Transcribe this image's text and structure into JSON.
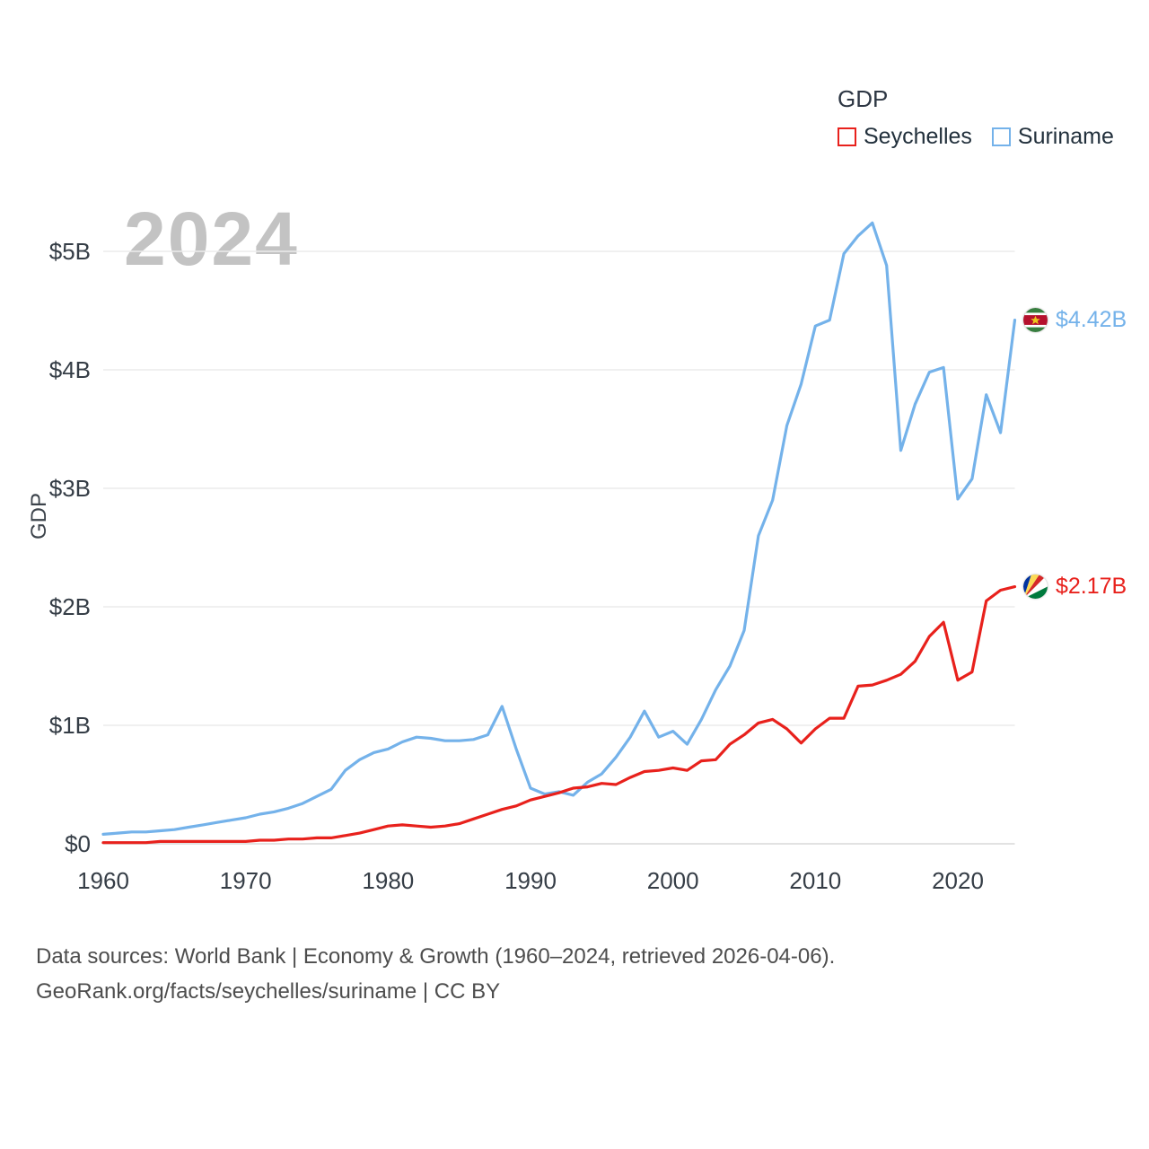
{
  "watermark": "2024",
  "legend": {
    "title": "GDP",
    "items": [
      {
        "label": "Seychelles",
        "color": "#e8211c"
      },
      {
        "label": "Suriname",
        "color": "#74b2ea"
      }
    ]
  },
  "chart_data": {
    "type": "line",
    "title": "GDP",
    "ylabel": "GDP",
    "xlabel": "",
    "grid": true,
    "legend_position": "top-right",
    "xlim": [
      1960,
      2024
    ],
    "ylim": [
      0,
      5.3
    ],
    "x_ticks": [
      1960,
      1970,
      1980,
      1990,
      2000,
      2010,
      2020
    ],
    "y_ticks": [
      {
        "value": 0,
        "label": "$0"
      },
      {
        "value": 1,
        "label": "$1B"
      },
      {
        "value": 2,
        "label": "$2B"
      },
      {
        "value": 3,
        "label": "$3B"
      },
      {
        "value": 4,
        "label": "$4B"
      },
      {
        "value": 5,
        "label": "$5B"
      }
    ],
    "x": [
      1960,
      1961,
      1962,
      1963,
      1964,
      1965,
      1966,
      1967,
      1968,
      1969,
      1970,
      1971,
      1972,
      1973,
      1974,
      1975,
      1976,
      1977,
      1978,
      1979,
      1980,
      1981,
      1982,
      1983,
      1984,
      1985,
      1986,
      1987,
      1988,
      1989,
      1990,
      1991,
      1992,
      1993,
      1994,
      1995,
      1996,
      1997,
      1998,
      1999,
      2000,
      2001,
      2002,
      2003,
      2004,
      2005,
      2006,
      2007,
      2008,
      2009,
      2010,
      2011,
      2012,
      2013,
      2014,
      2015,
      2016,
      2017,
      2018,
      2019,
      2020,
      2021,
      2022,
      2023,
      2024
    ],
    "series": [
      {
        "name": "Seychelles",
        "color": "#e8211c",
        "flag": "seychelles",
        "end_label": "$2.17B",
        "values": [
          0.01,
          0.01,
          0.01,
          0.01,
          0.02,
          0.02,
          0.02,
          0.02,
          0.02,
          0.02,
          0.02,
          0.03,
          0.03,
          0.04,
          0.04,
          0.05,
          0.05,
          0.07,
          0.09,
          0.12,
          0.15,
          0.16,
          0.15,
          0.14,
          0.15,
          0.17,
          0.21,
          0.25,
          0.29,
          0.32,
          0.37,
          0.4,
          0.43,
          0.47,
          0.48,
          0.51,
          0.5,
          0.56,
          0.61,
          0.62,
          0.64,
          0.62,
          0.7,
          0.71,
          0.84,
          0.92,
          1.02,
          1.05,
          0.97,
          0.85,
          0.97,
          1.06,
          1.06,
          1.33,
          1.34,
          1.38,
          1.43,
          1.54,
          1.75,
          1.87,
          1.38,
          1.45,
          2.05,
          2.14,
          2.17
        ]
      },
      {
        "name": "Suriname",
        "color": "#74b2ea",
        "flag": "suriname",
        "end_label": "$4.42B",
        "values": [
          0.08,
          0.09,
          0.1,
          0.1,
          0.11,
          0.12,
          0.14,
          0.16,
          0.18,
          0.2,
          0.22,
          0.25,
          0.27,
          0.3,
          0.34,
          0.4,
          0.46,
          0.62,
          0.71,
          0.77,
          0.8,
          0.86,
          0.9,
          0.89,
          0.87,
          0.87,
          0.88,
          0.92,
          1.16,
          0.8,
          0.47,
          0.42,
          0.44,
          0.41,
          0.52,
          0.59,
          0.73,
          0.9,
          1.12,
          0.9,
          0.95,
          0.84,
          1.05,
          1.3,
          1.5,
          1.8,
          2.6,
          2.9,
          3.53,
          3.88,
          4.37,
          4.42,
          4.98,
          5.13,
          5.24,
          4.88,
          3.32,
          3.71,
          3.98,
          4.02,
          2.91,
          3.08,
          3.79,
          3.47,
          4.42
        ]
      }
    ]
  },
  "footer": {
    "line1": "Data sources: World Bank | Economy & Growth (1960–2024, retrieved 2026-04-06).",
    "line2": "GeoRank.org/facts/seychelles/suriname | CC BY"
  }
}
